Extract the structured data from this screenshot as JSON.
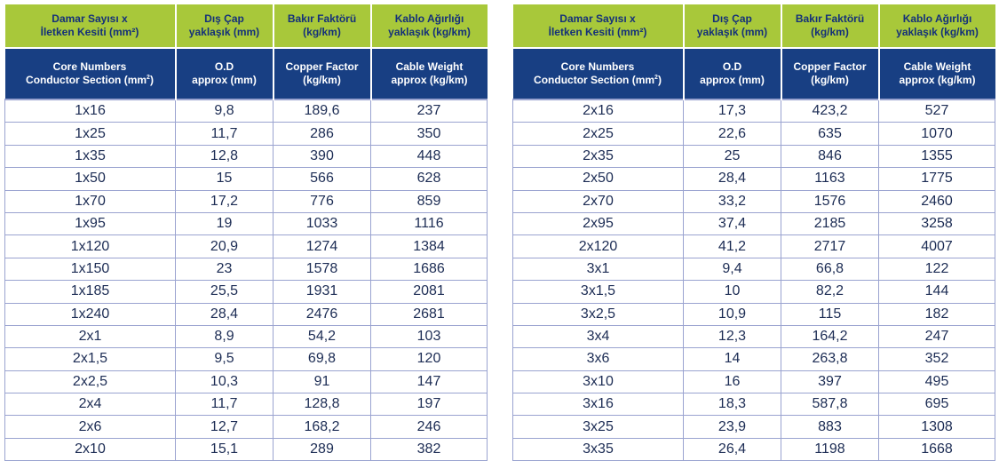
{
  "headers_tr": [
    {
      "line1": "Damar Sayısı x",
      "line2": "İletken Kesiti (mm²)"
    },
    {
      "line1": "Dış Çap",
      "line2": "yaklaşık (mm)"
    },
    {
      "line1": "Bakır Faktörü",
      "line2": "(kg/km)"
    },
    {
      "line1": "Kablo Ağırlığı",
      "line2": "yaklaşık (kg/km)"
    }
  ],
  "headers_en": [
    {
      "line1": "Core Numbers",
      "line2": "Conductor Section (mm",
      "sup": "2",
      "tail": ")"
    },
    {
      "line1": "O.D",
      "line2": "approx (mm)"
    },
    {
      "line1": "Copper Factor",
      "line2": "(kg/km)"
    },
    {
      "line1": "Cable Weight",
      "line2": "approx (kg/km)"
    }
  ],
  "left_rows": [
    [
      "1x16",
      "9,8",
      "189,6",
      "237"
    ],
    [
      "1x25",
      "11,7",
      "286",
      "350"
    ],
    [
      "1x35",
      "12,8",
      "390",
      "448"
    ],
    [
      "1x50",
      "15",
      "566",
      "628"
    ],
    [
      "1x70",
      "17,2",
      "776",
      "859"
    ],
    [
      "1x95",
      "19",
      "1033",
      "1116"
    ],
    [
      "1x120",
      "20,9",
      "1274",
      "1384"
    ],
    [
      "1x150",
      "23",
      "1578",
      "1686"
    ],
    [
      "1x185",
      "25,5",
      "1931",
      "2081"
    ],
    [
      "1x240",
      "28,4",
      "2476",
      "2681"
    ],
    [
      "2x1",
      "8,9",
      "54,2",
      "103"
    ],
    [
      "2x1,5",
      "9,5",
      "69,8",
      "120"
    ],
    [
      "2x2,5",
      "10,3",
      "91",
      "147"
    ],
    [
      "2x4",
      "11,7",
      "128,8",
      "197"
    ],
    [
      "2x6",
      "12,7",
      "168,2",
      "246"
    ],
    [
      "2x10",
      "15,1",
      "289",
      "382"
    ]
  ],
  "right_rows": [
    [
      "2x16",
      "17,3",
      "423,2",
      "527"
    ],
    [
      "2x25",
      "22,6",
      "635",
      "1070"
    ],
    [
      "2x35",
      "25",
      "846",
      "1355"
    ],
    [
      "2x50",
      "28,4",
      "1163",
      "1775"
    ],
    [
      "2x70",
      "33,2",
      "1576",
      "2460"
    ],
    [
      "2x95",
      "37,4",
      "2185",
      "3258"
    ],
    [
      "2x120",
      "41,2",
      "2717",
      "4007"
    ],
    [
      "3x1",
      "9,4",
      "66,8",
      "122"
    ],
    [
      "3x1,5",
      "10",
      "82,2",
      "144"
    ],
    [
      "3x2,5",
      "10,9",
      "115",
      "182"
    ],
    [
      "3x4",
      "12,3",
      "164,2",
      "247"
    ],
    [
      "3x6",
      "14",
      "263,8",
      "352"
    ],
    [
      "3x10",
      "16",
      "397",
      "495"
    ],
    [
      "3x16",
      "18,3",
      "587,8",
      "695"
    ],
    [
      "3x25",
      "23,9",
      "883",
      "1308"
    ],
    [
      "3x35",
      "26,4",
      "1198",
      "1668"
    ]
  ]
}
